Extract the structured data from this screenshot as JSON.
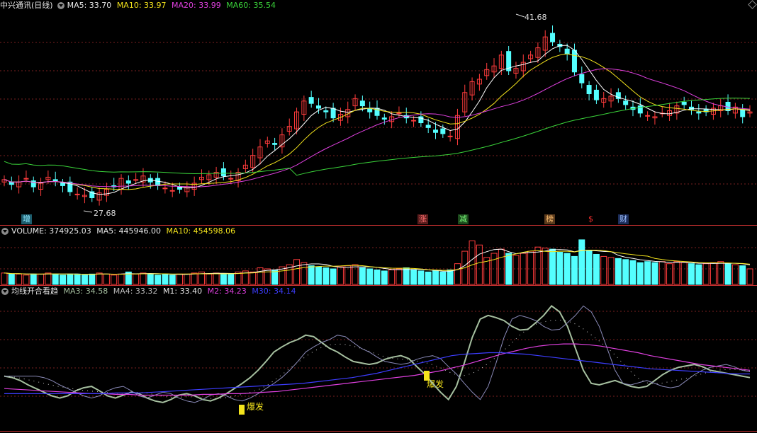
{
  "header": {
    "stock_title": "中兴通讯(日线)",
    "ma5": "MA5: 33.70",
    "ma10": "MA10: 33.97",
    "ma20": "MA20: 33.99",
    "ma60": "MA60: 35.54"
  },
  "price_labels": {
    "high": "41.68",
    "low": "27.68"
  },
  "events": [
    "增",
    "涨",
    "减",
    "榜",
    "$",
    "财"
  ],
  "volume_header": {
    "volume": "VOLUME: 374925.03",
    "ma5": "MA5: 445946.00",
    "ma10": "MA10: 454598.06"
  },
  "indicator_header": {
    "title": "均线开合看趋",
    "ma3": "MA3: 34.58",
    "ma4": "MA4: 33.32",
    "m1": "M1: 33.40",
    "m2": "M2: 34.23",
    "m30": "M30: 34.14"
  },
  "signals": [
    "爆发",
    "爆发"
  ],
  "colors": {
    "up": "#ff3c3c",
    "down": "#54ffff",
    "ma5": "#ffffff",
    "ma10": "#f4e41c",
    "ma20": "#e040e0",
    "ma60": "#3ad43a",
    "m30": "#3d3dff",
    "ma3": "#a6c0a0",
    "grid": "#7a1f1f"
  },
  "chart_data": {
    "type": "candlestick",
    "title": "中兴通讯(日线)",
    "price_range": [
      26.5,
      43.0
    ],
    "low_mark": 27.68,
    "high_mark": 41.68,
    "closes": [
      29.2,
      28.8,
      29.0,
      29.3,
      28.6,
      28.9,
      29.4,
      29.1,
      28.7,
      28.2,
      28.0,
      27.9,
      27.7,
      28.1,
      28.4,
      28.6,
      29.3,
      28.9,
      29.2,
      29.5,
      29.0,
      28.7,
      28.5,
      28.3,
      28.4,
      28.6,
      28.9,
      29.4,
      29.6,
      29.8,
      29.5,
      29.3,
      29.8,
      30.4,
      31.2,
      31.9,
      32.4,
      32.1,
      32.9,
      33.6,
      34.8,
      35.7,
      35.5,
      35.1,
      34.8,
      34.3,
      34.6,
      35.0,
      35.9,
      35.3,
      34.8,
      34.5,
      34.2,
      34.4,
      34.7,
      34.3,
      34.1,
      33.9,
      33.5,
      33.1,
      33.0,
      32.8,
      34.5,
      36.4,
      37.3,
      37.5,
      38.3,
      38.6,
      39.5,
      38.2,
      38.4,
      38.9,
      39.5,
      40.1,
      41.0,
      40.6,
      40.2,
      39.6,
      38.1,
      37.2,
      36.3,
      35.8,
      35.9,
      36.1,
      35.9,
      35.4,
      35.0,
      34.7,
      34.5,
      34.4,
      34.7,
      34.9,
      35.3,
      35.4,
      35.0,
      34.7,
      34.8,
      35.1,
      35.3,
      34.9,
      35.2,
      34.4,
      34.8
    ],
    "volumes": [
      0.11,
      0.1,
      0.1,
      0.09,
      0.1,
      0.1,
      0.11,
      0.1,
      0.09,
      0.1,
      0.1,
      0.09,
      0.1,
      0.11,
      0.1,
      0.09,
      0.1,
      0.12,
      0.1,
      0.11,
      0.1,
      0.09,
      0.1,
      0.09,
      0.1,
      0.1,
      0.11,
      0.12,
      0.1,
      0.11,
      0.1,
      0.1,
      0.12,
      0.13,
      0.12,
      0.16,
      0.15,
      0.14,
      0.17,
      0.19,
      0.24,
      0.21,
      0.18,
      0.17,
      0.16,
      0.15,
      0.17,
      0.18,
      0.19,
      0.16,
      0.15,
      0.14,
      0.13,
      0.14,
      0.15,
      0.16,
      0.14,
      0.13,
      0.12,
      0.13,
      0.12,
      0.14,
      0.2,
      0.32,
      0.42,
      0.38,
      0.26,
      0.3,
      0.34,
      0.3,
      0.28,
      0.3,
      0.32,
      0.36,
      0.35,
      0.34,
      0.31,
      0.3,
      0.27,
      0.43,
      0.33,
      0.29,
      0.27,
      0.26,
      0.25,
      0.24,
      0.23,
      0.21,
      0.22,
      0.21,
      0.22,
      0.2,
      0.22,
      0.21,
      0.2,
      0.19,
      0.2,
      0.21,
      0.22,
      0.2,
      0.19,
      0.18,
      0.15
    ],
    "indicator_ma3": [
      0.72,
      0.7,
      0.66,
      0.6,
      0.55,
      0.5,
      0.45,
      0.42,
      0.45,
      0.52,
      0.56,
      0.58,
      0.52,
      0.45,
      0.42,
      0.46,
      0.5,
      0.48,
      0.42,
      0.38,
      0.36,
      0.4,
      0.46,
      0.48,
      0.45,
      0.4,
      0.38,
      0.42,
      0.48,
      0.55,
      0.62,
      0.7,
      0.8,
      0.92,
      1.05,
      1.12,
      1.18,
      1.22,
      1.28,
      1.26,
      1.18,
      1.1,
      1.05,
      0.98,
      0.92,
      0.9,
      0.88,
      0.9,
      0.95,
      0.98,
      1.0,
      0.96,
      0.85,
      0.75,
      0.62,
      0.5,
      0.4,
      0.58,
      0.9,
      1.25,
      1.5,
      1.55,
      1.52,
      1.48,
      1.4,
      1.35,
      1.36,
      1.45,
      1.55,
      1.68,
      1.6,
      1.4,
      1.1,
      0.8,
      0.62,
      0.6,
      0.63,
      0.66,
      0.62,
      0.58,
      0.56,
      0.58,
      0.66,
      0.74,
      0.8,
      0.84,
      0.86,
      0.88,
      0.85,
      0.8,
      0.78,
      0.76,
      0.74,
      0.72,
      0.7
    ],
    "indicator_m2": [
      0.55,
      0.54,
      0.53,
      0.52,
      0.51,
      0.5,
      0.49,
      0.48,
      0.48,
      0.47,
      0.47,
      0.46,
      0.46,
      0.46,
      0.46,
      0.46,
      0.47,
      0.47,
      0.48,
      0.48,
      0.49,
      0.5,
      0.51,
      0.53,
      0.55,
      0.57,
      0.59,
      0.61,
      0.63,
      0.65,
      0.67,
      0.69,
      0.71,
      0.73,
      0.76,
      0.79,
      0.83,
      0.87,
      0.92,
      0.97,
      1.02,
      1.06,
      1.1,
      1.13,
      1.15,
      1.16,
      1.16,
      1.15,
      1.13,
      1.1,
      1.07,
      1.04,
      1.0,
      0.97,
      0.94,
      0.91,
      0.88,
      0.86,
      0.84,
      0.82,
      0.8
    ],
    "indicator_m30": [
      0.48,
      0.48,
      0.48,
      0.48,
      0.48,
      0.48,
      0.48,
      0.48,
      0.48,
      0.49,
      0.49,
      0.49,
      0.5,
      0.51,
      0.52,
      0.53,
      0.54,
      0.55,
      0.56,
      0.57,
      0.58,
      0.59,
      0.6,
      0.61,
      0.62,
      0.64,
      0.66,
      0.68,
      0.7,
      0.73,
      0.76,
      0.8,
      0.84,
      0.88,
      0.92,
      0.96,
      1.0,
      1.02,
      1.03,
      1.04,
      1.04,
      1.03,
      1.02,
      1.0,
      0.98,
      0.96,
      0.94,
      0.92,
      0.9,
      0.88,
      0.86,
      0.84,
      0.82,
      0.81,
      0.8,
      0.79,
      0.78,
      0.77,
      0.76,
      0.75,
      0.75
    ]
  }
}
